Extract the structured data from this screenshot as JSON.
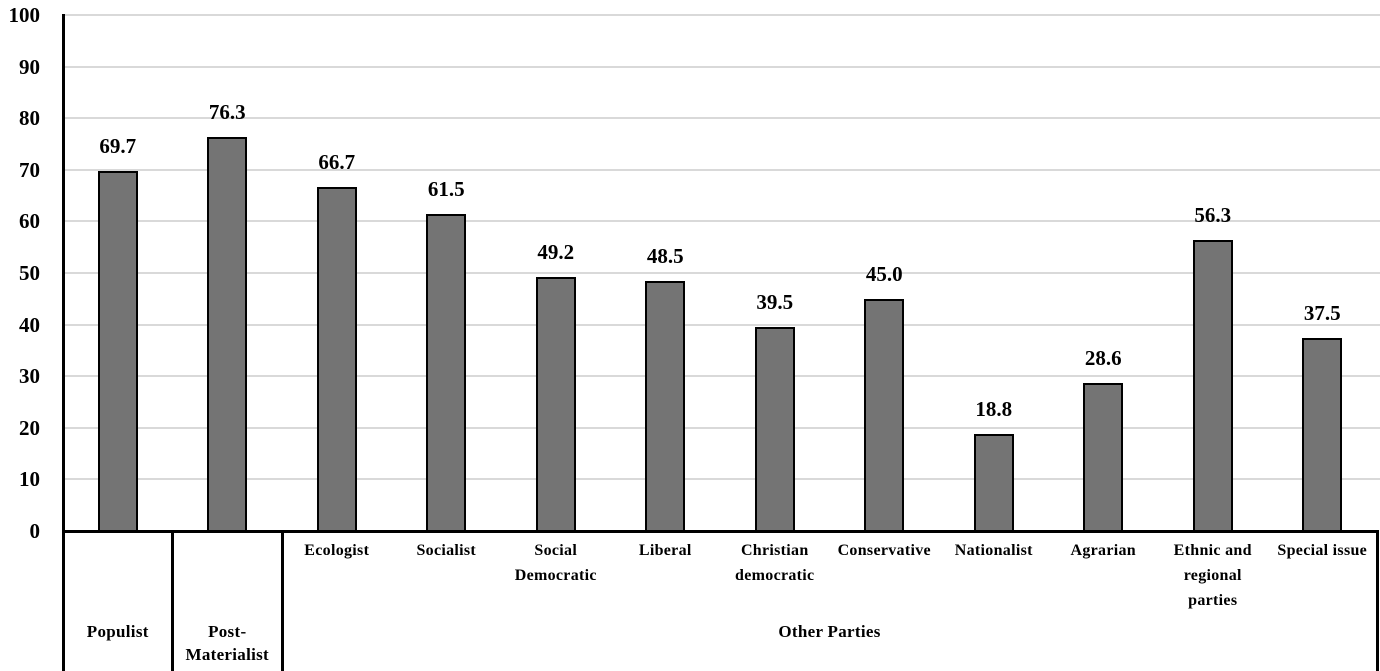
{
  "chart_data": {
    "type": "bar",
    "title": "",
    "xlabel": "",
    "ylabel": "",
    "ylim": [
      0,
      100
    ],
    "yticks": [
      0,
      10,
      20,
      30,
      40,
      50,
      60,
      70,
      80,
      90,
      100
    ],
    "ytick_labels": [
      "0",
      "10",
      "20",
      "30",
      "40",
      "50",
      "60",
      "70",
      "80",
      "90",
      "100"
    ],
    "grid": "horizontal",
    "legend": "none",
    "bar_color": "#747474",
    "bar_border_color": "#000000",
    "gridline_color": "#d9d9d9",
    "categories": [
      "Populist",
      "Post-Materialist",
      "Ecologist",
      "Socialist",
      "Social\nDemocratic",
      "Liberal",
      "Christian\ndemocratic",
      "Conservative",
      "Nationalist",
      "Agrarian",
      "Ethnic and\nregional\nparties",
      "Special issue"
    ],
    "values": [
      69.7,
      76.3,
      66.7,
      61.5,
      49.2,
      48.5,
      39.5,
      45.0,
      18.8,
      28.6,
      56.3,
      37.5
    ],
    "value_labels": [
      "69.7",
      "76.3",
      "66.7",
      "61.5",
      "49.2",
      "48.5",
      "39.5",
      "45.0",
      "18.8",
      "28.6",
      "56.3",
      "37.5"
    ],
    "groups": [
      {
        "label": "Populist",
        "start": 0,
        "end": 0
      },
      {
        "label": "Post-\nMaterialist",
        "start": 1,
        "end": 1
      },
      {
        "label": "Other Parties",
        "start": 2,
        "end": 11
      }
    ]
  }
}
